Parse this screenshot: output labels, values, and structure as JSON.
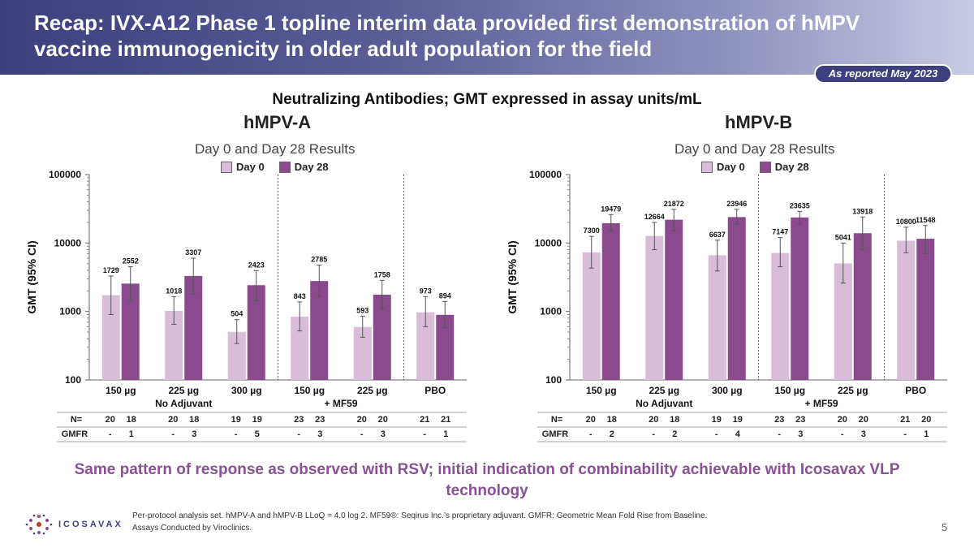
{
  "header": {
    "title": "Recap: IVX-A12 Phase 1 topline interim data provided first demonstration of hMPV vaccine immunogenicity in older adult population for the field",
    "badge": "As reported May 2023"
  },
  "main_title": "Neutralizing Antibodies; GMT expressed in assay units/mL",
  "legend": {
    "day0": "Day 0",
    "day28": "Day 28"
  },
  "colors": {
    "day0": "#d8bcd8",
    "day28": "#8c4a8e",
    "header": "#3d3f7f",
    "callout": "#8a5096"
  },
  "table_labels": {
    "n": "N=",
    "gmfr": "GMFR"
  },
  "chart_data": [
    {
      "type": "bar",
      "title": "hMPV-A",
      "subtitle": "Day 0 and Day 28 Results",
      "ylabel": "GMT (95% CI)",
      "yscale": "log",
      "ylim": [
        100,
        100000
      ],
      "yticks": [
        "100",
        "1000",
        "10000",
        "100000"
      ],
      "categories": [
        "150 µg",
        "225 µg",
        "300 µg",
        "150 µg",
        "225 µg",
        "PBO"
      ],
      "group_labels": [
        "No Adjuvant",
        "+ MF59"
      ],
      "series": [
        {
          "name": "Day 0",
          "values": [
            1729,
            1018,
            504,
            843,
            593,
            973
          ],
          "ci_low": [
            900,
            650,
            340,
            520,
            420,
            600
          ],
          "ci_high": [
            3300,
            1650,
            760,
            1380,
            850,
            1650
          ]
        },
        {
          "name": "Day 28",
          "values": [
            2552,
            3307,
            2423,
            2785,
            1758,
            894
          ],
          "ci_low": [
            1450,
            1800,
            1450,
            1650,
            1100,
            580
          ],
          "ci_high": [
            4500,
            6000,
            3950,
            4750,
            2850,
            1400
          ]
        }
      ],
      "labels": {
        "day0": [
          "1729",
          "1018",
          "504",
          "843",
          "593",
          "973"
        ],
        "day28": [
          "2552",
          "3307",
          "2423",
          "2785",
          "1758",
          "894"
        ]
      },
      "n_rows": [
        [
          "20",
          "18"
        ],
        [
          "20",
          "18"
        ],
        [
          "19",
          "19"
        ],
        [
          "23",
          "23"
        ],
        [
          "20",
          "20"
        ],
        [
          "21",
          "21"
        ]
      ],
      "gmfr_rows": [
        [
          "-",
          "1"
        ],
        [
          "-",
          "3"
        ],
        [
          "-",
          "5"
        ],
        [
          "-",
          "3"
        ],
        [
          "-",
          "3"
        ],
        [
          "-",
          "1"
        ]
      ]
    },
    {
      "type": "bar",
      "title": "hMPV-B",
      "subtitle": "Day 0 and Day 28 Results",
      "ylabel": "GMT (95% CI)",
      "yscale": "log",
      "ylim": [
        100,
        100000
      ],
      "yticks": [
        "100",
        "1000",
        "10000",
        "100000"
      ],
      "categories": [
        "150 µg",
        "225 µg",
        "300 µg",
        "150 µg",
        "225 µg",
        "PBO"
      ],
      "group_labels": [
        "No Adjuvant",
        "+ MF59"
      ],
      "series": [
        {
          "name": "Day 0",
          "values": [
            7300,
            12664,
            6637,
            7147,
            5041,
            10800
          ],
          "ci_low": [
            4300,
            8000,
            3900,
            4500,
            2600,
            7200
          ],
          "ci_high": [
            12500,
            20000,
            11000,
            12000,
            10000,
            17000
          ]
        },
        {
          "name": "Day 28",
          "values": [
            19479,
            21872,
            23946,
            23635,
            13918,
            11548
          ],
          "ci_low": [
            15000,
            15000,
            19000,
            19000,
            8000,
            7000
          ],
          "ci_high": [
            26000,
            31000,
            31000,
            29000,
            24000,
            18000
          ]
        }
      ],
      "labels": {
        "day0": [
          "7300",
          "12664",
          "6637",
          "7147",
          "5041",
          "10800"
        ],
        "day28": [
          "19479",
          "21872",
          "23946",
          "23635",
          "13918",
          "11548"
        ]
      },
      "n_rows": [
        [
          "20",
          "18"
        ],
        [
          "20",
          "18"
        ],
        [
          "19",
          "19"
        ],
        [
          "23",
          "23"
        ],
        [
          "20",
          "20"
        ],
        [
          "21",
          "20"
        ]
      ],
      "gmfr_rows": [
        [
          "-",
          "2"
        ],
        [
          "-",
          "2"
        ],
        [
          "-",
          "4"
        ],
        [
          "-",
          "3"
        ],
        [
          "-",
          "3"
        ],
        [
          "-",
          "1"
        ]
      ]
    }
  ],
  "callout": "Same pattern of response as observed with RSV; initial indication of combinability achievable with Icosavax VLP technology",
  "footnote_line1": "Per-protocol analysis set. hMPV-A and hMPV-B LLoQ = 4.0 log 2. MF59®: Seqirus Inc.’s proprietary adjuvant. GMFR: Geometric Mean Fold Rise from Baseline.",
  "footnote_line2": "Assays Conducted by Viroclinics.",
  "logo_text": "ICOSAVAX",
  "logo_icon": "dots-flower-icon",
  "page_number": "5"
}
